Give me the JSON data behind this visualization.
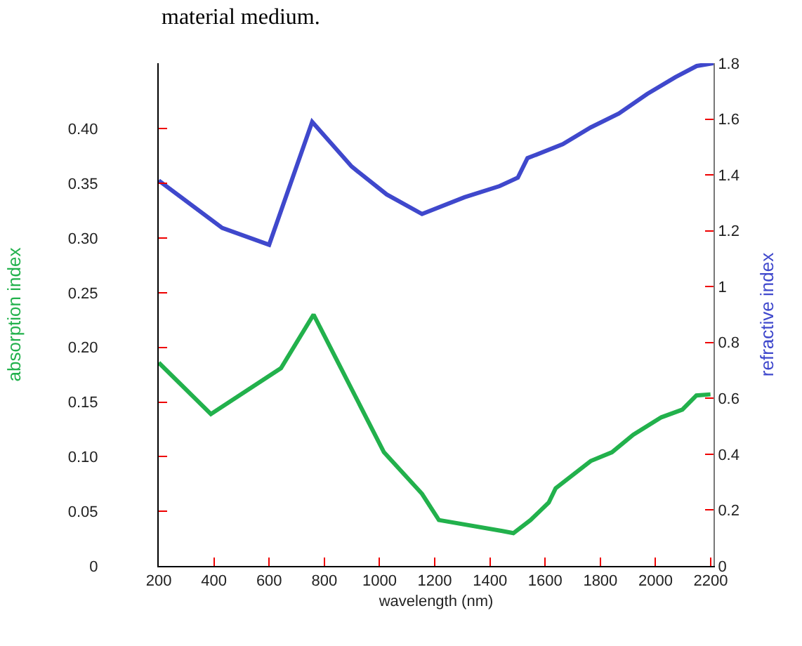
{
  "chart_data": {
    "type": "line",
    "xlabel": "wavelength (nm)",
    "ylabel": "absorption index",
    "y2label": "refractive index",
    "annotations": [
      "material medium."
    ],
    "xlim": [
      200,
      2210
    ],
    "xticks": [
      200,
      400,
      600,
      800,
      1000,
      1200,
      1400,
      1600,
      1800,
      2000,
      2200
    ],
    "ylim": [
      0,
      0.46
    ],
    "yticks": [
      0,
      0.05,
      {
        "value": 0.1,
        "label": "0.10"
      },
      0.15,
      {
        "value": 0.2,
        "label": "0.20"
      },
      0.25,
      {
        "value": 0.3,
        "label": "0.30"
      },
      0.35,
      {
        "value": 0.4,
        "label": "0.40"
      }
    ],
    "y2lim": [
      0,
      1.8
    ],
    "y2ticks": [
      0,
      0.2,
      0.4,
      0.6,
      0.8,
      1,
      1.2,
      1.4,
      1.6,
      1.8
    ],
    "grid": false,
    "marker": "none",
    "line_style": "solid",
    "series": [
      {
        "color": "#3f48cc",
        "axis": "y2",
        "x": [
          200,
          430,
          600,
          756,
          899,
          1026,
          1154,
          1308,
          1435,
          1501,
          1536,
          1664,
          1765,
          1867,
          1970,
          2072,
          2149,
          2210
        ],
        "values": [
          1.38,
          1.21,
          1.15,
          1.59,
          1.43,
          1.33,
          1.26,
          1.32,
          1.36,
          1.39,
          1.46,
          1.51,
          1.57,
          1.62,
          1.69,
          1.75,
          1.79,
          1.8
        ]
      },
      {
        "color": "#22b14c",
        "x": [
          200,
          389,
          643,
          761,
          1016,
          1154,
          1215,
          1445,
          1485,
          1547,
          1613,
          1638,
          1765,
          1842,
          1919,
          2021,
          2097,
          2148,
          2199
        ],
        "values": [
          0.186,
          0.139,
          0.181,
          0.23,
          0.104,
          0.066,
          0.042,
          0.032,
          0.03,
          0.042,
          0.058,
          0.071,
          0.096,
          0.104,
          0.12,
          0.136,
          0.143,
          0.156,
          0.157
        ]
      }
    ]
  }
}
